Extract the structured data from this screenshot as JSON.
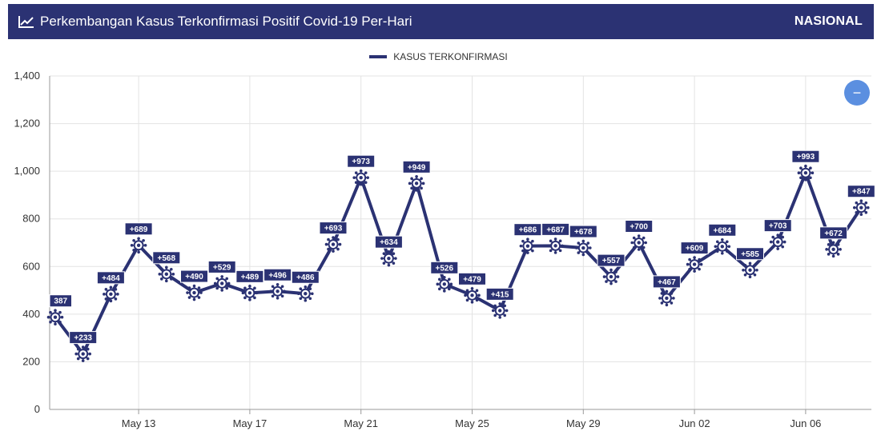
{
  "header": {
    "title": "Perkembangan Kasus Terkonfirmasi Positif Covid-19 Per-Hari",
    "badge": "NASIONAL",
    "icon": "line-chart-icon"
  },
  "collapse_button": {
    "label": "−",
    "icon": "minus-icon"
  },
  "colors": {
    "header_bg": "#2b3273",
    "series": "#2b3273",
    "button": "#5b8fe0",
    "grid": "#e3e3e3"
  },
  "chart_data": {
    "type": "line",
    "legend": {
      "placement": "top-center",
      "entries": [
        "KASUS TERKONFIRMASI"
      ]
    },
    "x": [
      "May 10",
      "May 11",
      "May 12",
      "May 13",
      "May 14",
      "May 15",
      "May 16",
      "May 17",
      "May 18",
      "May 19",
      "May 20",
      "May 21",
      "May 22",
      "May 23",
      "May 24",
      "May 25",
      "May 26",
      "May 27",
      "May 28",
      "May 29",
      "May 30",
      "May 31",
      "Jun 01",
      "Jun 02",
      "Jun 03",
      "Jun 04",
      "Jun 05",
      "Jun 06",
      "Jun 07",
      "Jun 08"
    ],
    "x_tick_labels": [
      "May 13",
      "May 17",
      "May 21",
      "May 25",
      "May 29",
      "Jun 02",
      "Jun 06"
    ],
    "y_tick_labels": [
      "0",
      "200",
      "400",
      "600",
      "800",
      "1,000",
      "1,200",
      "1,400"
    ],
    "ylim": [
      0,
      1400
    ],
    "grid": true,
    "series": [
      {
        "name": "KASUS TERKONFIRMASI",
        "values": [
          387,
          233,
          484,
          689,
          568,
          490,
          529,
          489,
          496,
          486,
          693,
          973,
          634,
          949,
          526,
          479,
          415,
          686,
          687,
          678,
          557,
          700,
          467,
          609,
          684,
          585,
          703,
          993,
          672,
          847
        ],
        "labels": [
          "387",
          "+233",
          "+484",
          "+689",
          "+568",
          "+490",
          "+529",
          "+489",
          "+496",
          "+486",
          "+693",
          "+973",
          "+634",
          "+949",
          "+526",
          "+479",
          "+415",
          "+686",
          "+687",
          "+678",
          "+557",
          "+700",
          "+467",
          "+609",
          "+684",
          "+585",
          "+703",
          "+993",
          "+672",
          "+847"
        ]
      }
    ],
    "marker_icon": "virus-icon"
  }
}
